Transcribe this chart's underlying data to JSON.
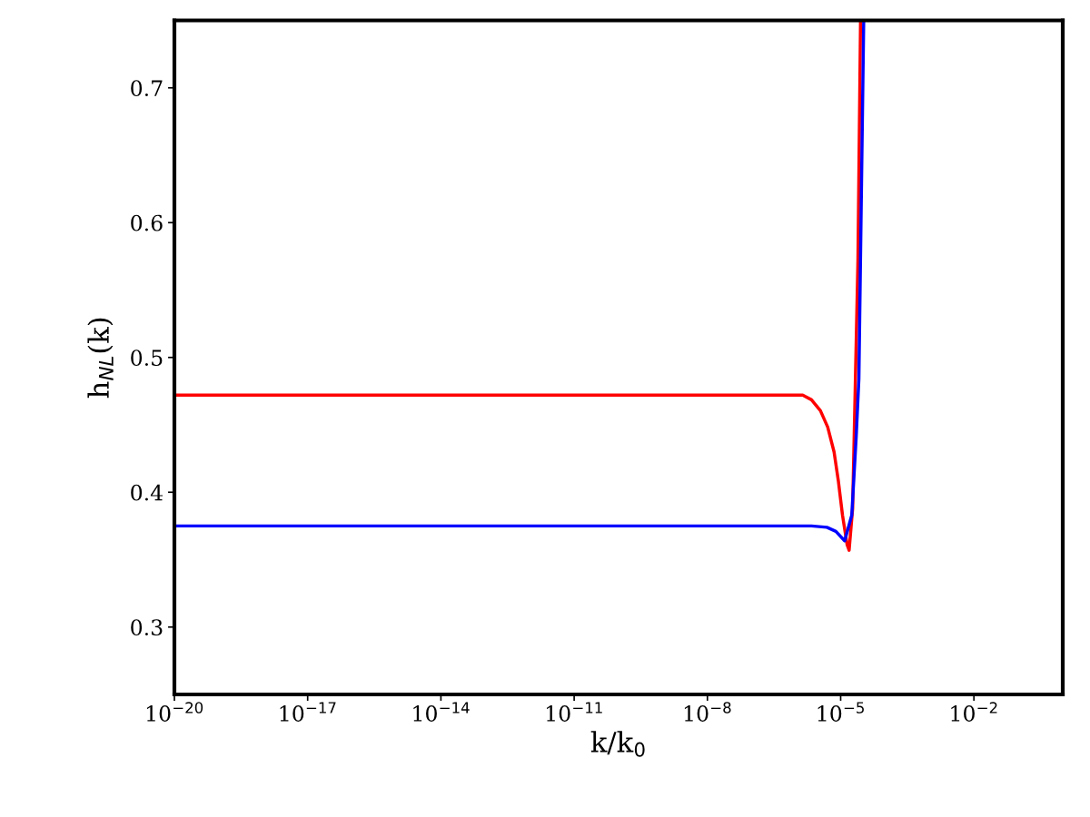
{
  "chart_data": {
    "type": "line",
    "xlabel": "k/k$_{0}$",
    "ylabel": "h$_{NL}$(k)",
    "log": "x",
    "xlim": [
      1e-20,
      1
    ],
    "ylim": [
      0.25,
      0.75
    ],
    "xticks": [
      {
        "value": 1e-20,
        "label": "10$^{−20}$"
      },
      {
        "value": 1e-17,
        "label": "10$^{−17}$"
      },
      {
        "value": 1e-14,
        "label": "10$^{−14}$"
      },
      {
        "value": 1e-11,
        "label": "10$^{−11}$"
      },
      {
        "value": 1e-08,
        "label": "10$^{−8}$"
      },
      {
        "value": 1e-05,
        "label": "10$^{−5}$"
      },
      {
        "value": 0.01,
        "label": "10$^{−2}$"
      }
    ],
    "yticks": [
      0.3,
      0.4,
      0.5,
      0.6,
      0.7
    ],
    "grid": false,
    "series": [
      {
        "color": "#ff0000",
        "x": [
          1e-20,
          1e-12,
          8.5e-08,
          1.4e-06,
          2.2e-06,
          3.5e-06,
          5.1e-06,
          7.1e-06,
          8.9e-06,
          1.1e-05,
          1.4e-05,
          1.55e-05,
          1.86e-05,
          2.45e-05,
          2.8e-05
        ],
        "values": [
          0.472,
          0.472,
          0.472,
          0.472,
          0.4686,
          0.4605,
          0.4484,
          0.43,
          0.408,
          0.383,
          0.361,
          0.357,
          0.388,
          0.572,
          0.749
        ]
      },
      {
        "color": "#0000ff",
        "x": [
          1e-20,
          1e-12,
          2.2e-06,
          4.9e-06,
          7.8e-06,
          1.23e-05,
          1.78e-05,
          2.24e-05,
          2.57e-05,
          3.3e-05
        ],
        "values": [
          0.375,
          0.375,
          0.375,
          0.374,
          0.371,
          0.364,
          0.383,
          0.4417,
          0.484,
          0.749
        ]
      }
    ]
  }
}
